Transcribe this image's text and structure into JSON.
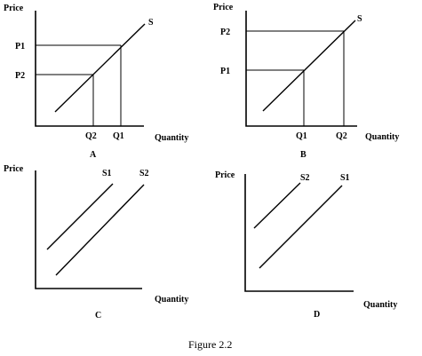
{
  "figure": {
    "caption": "Figure 2.2",
    "panels": {
      "A": {
        "id": "A",
        "y_axis": "Price",
        "x_axis": "Quantity",
        "curve": "S",
        "y_ticks": [
          "P1",
          "P2"
        ],
        "x_ticks": [
          "Q2",
          "Q1"
        ]
      },
      "B": {
        "id": "B",
        "y_axis": "Price",
        "x_axis": "Quantity",
        "curve": "S",
        "y_ticks": [
          "P2",
          "P1"
        ],
        "x_ticks": [
          "Q1",
          "Q2"
        ]
      },
      "C": {
        "id": "C",
        "y_axis": "Price",
        "x_axis": "Quantity",
        "curves": [
          "S1",
          "S2"
        ]
      },
      "D": {
        "id": "D",
        "y_axis": "Price",
        "x_axis": "Quantity",
        "curves": [
          "S2",
          "S1"
        ]
      }
    }
  }
}
